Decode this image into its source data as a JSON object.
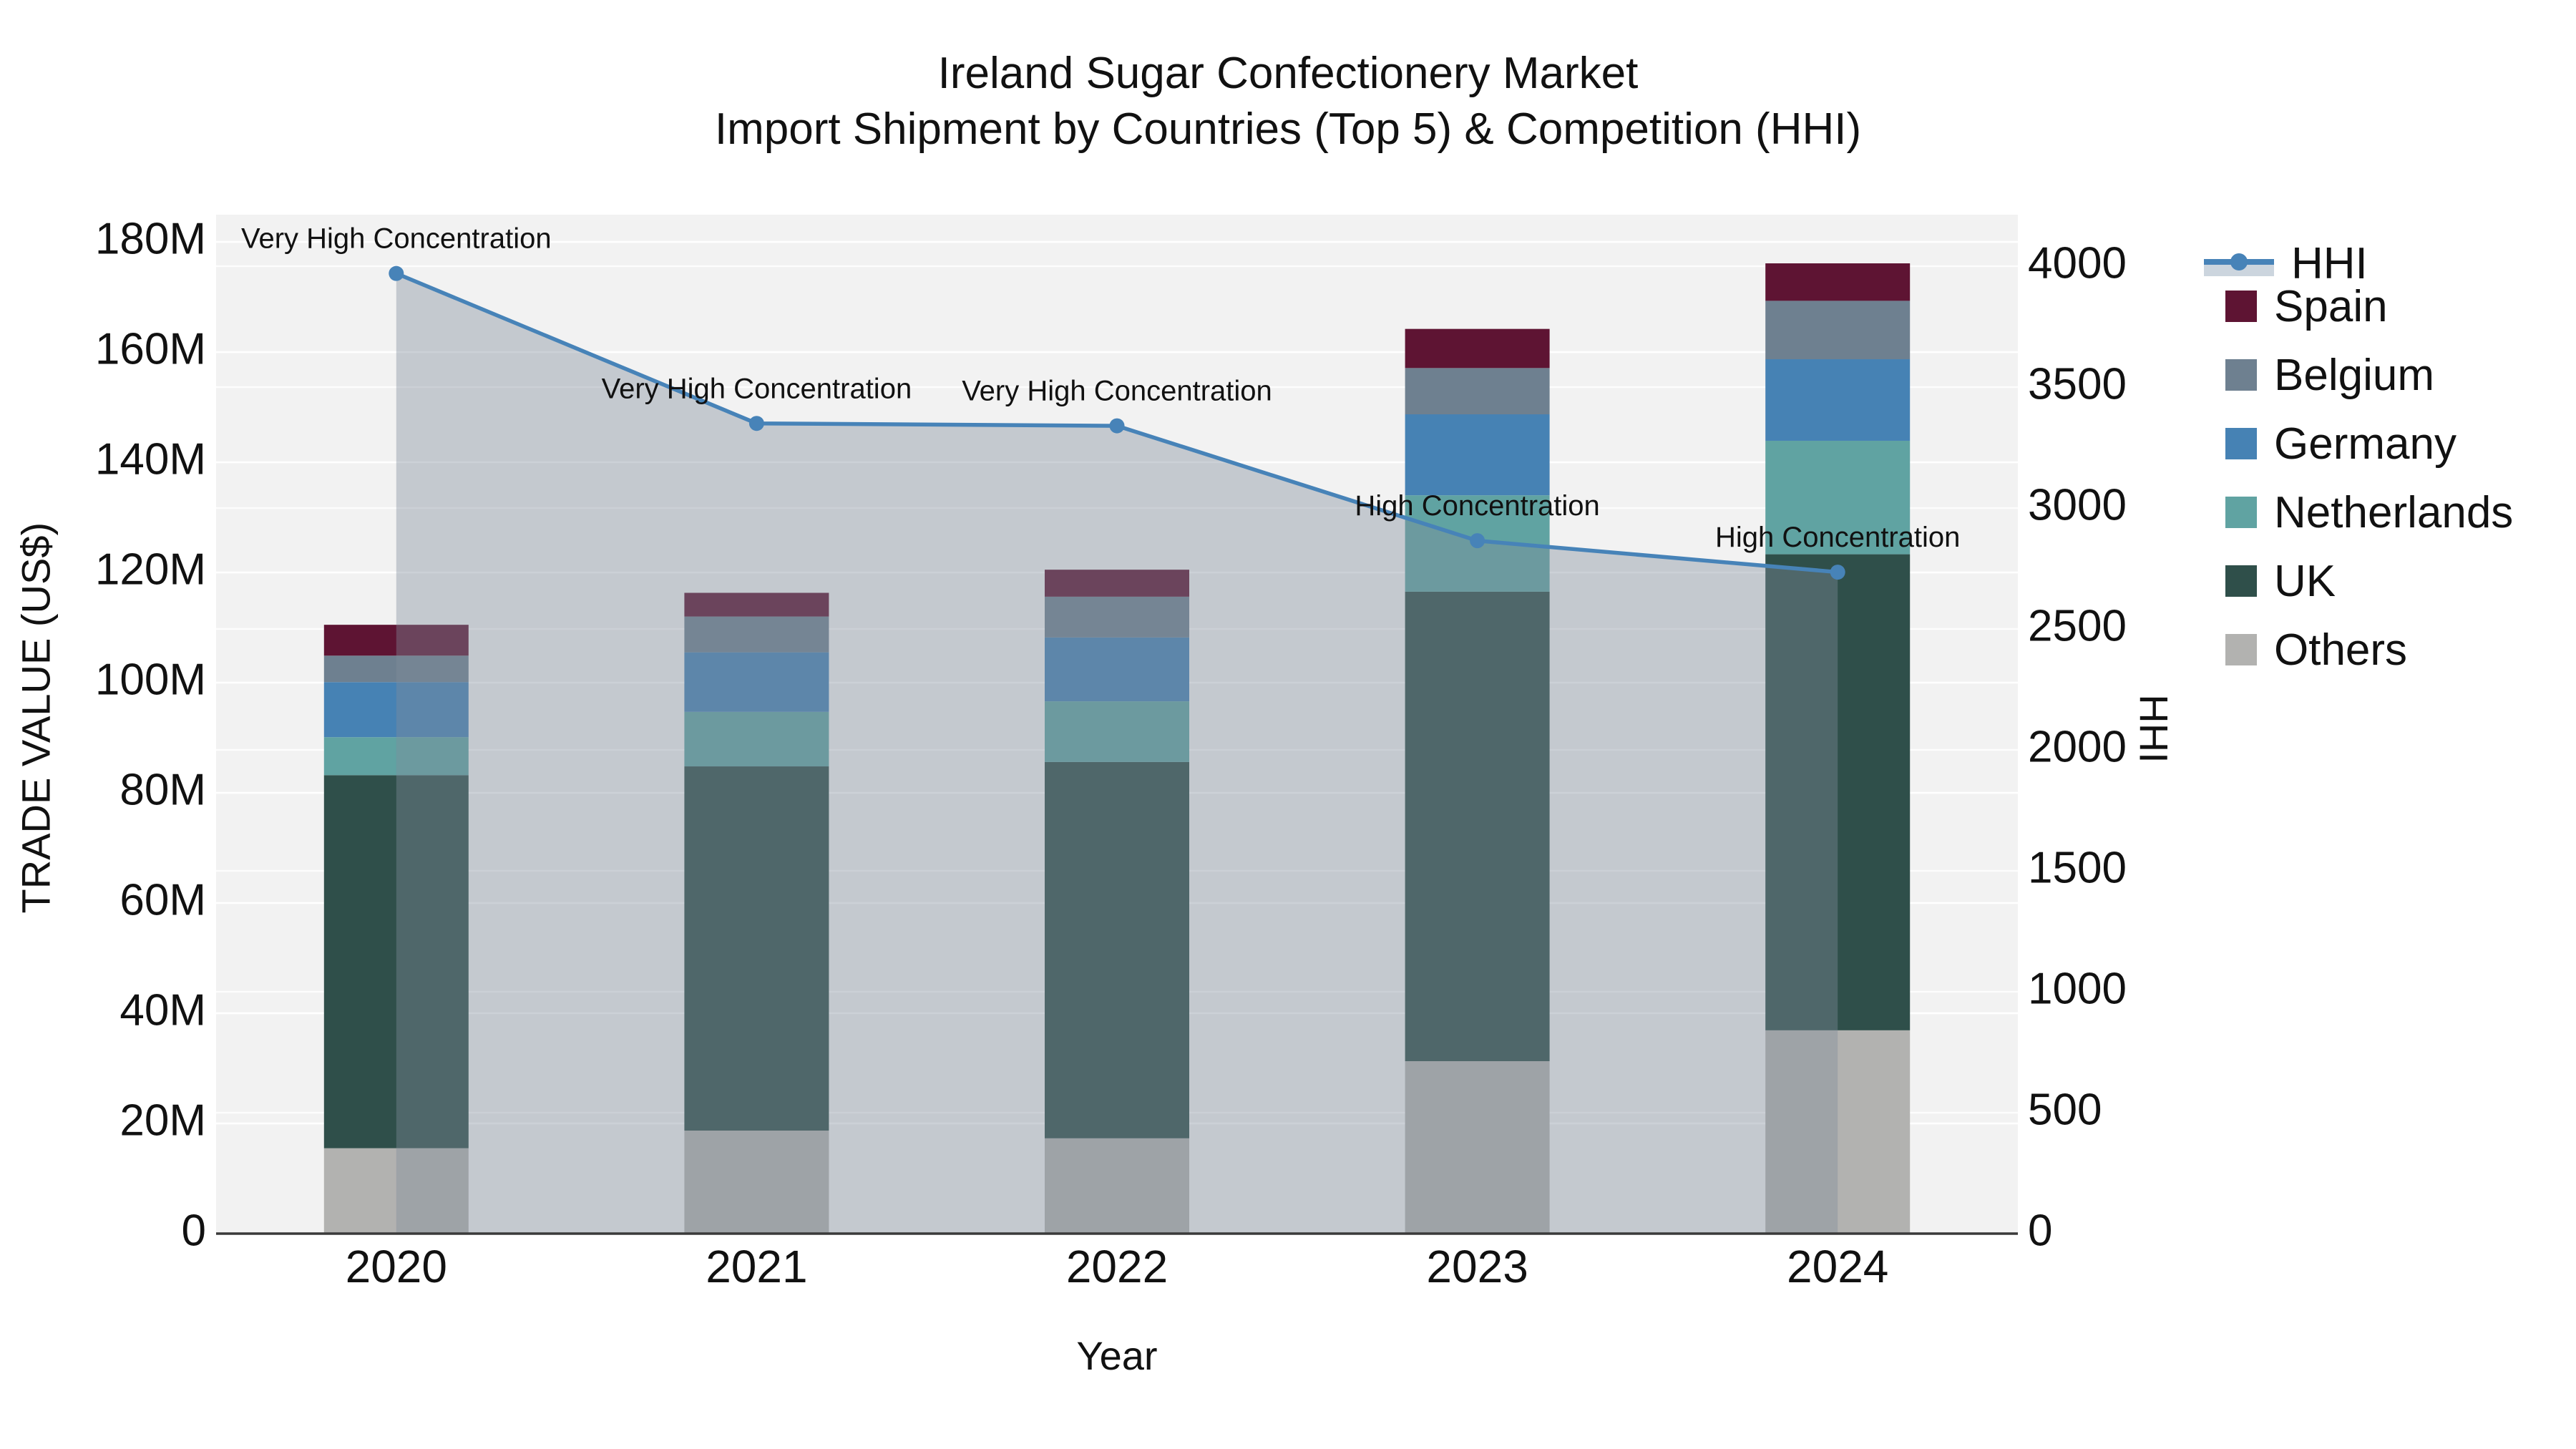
{
  "title": {
    "line1": "Ireland Sugar Confectionery Market",
    "line2": "Import Shipment by Countries (Top 5) & Competition (HHI)"
  },
  "chart_data": {
    "type": "bar",
    "subtype": "stacked bars with secondary-axis line (HHI) and shaded area",
    "categories": [
      "2020",
      "2021",
      "2022",
      "2023",
      "2024"
    ],
    "stack_order_bottom_to_top": [
      "Others",
      "UK",
      "Netherlands",
      "Germany",
      "Belgium",
      "Spain"
    ],
    "series": [
      {
        "name": "Others",
        "color": "#b2b2b0",
        "values": [
          15.5,
          18.7,
          17.3,
          31.3,
          36.9
        ]
      },
      {
        "name": "UK",
        "color": "#2f4f4a",
        "values": [
          67.7,
          66.1,
          68.3,
          85.2,
          86.4
        ]
      },
      {
        "name": "Netherlands",
        "color": "#60a3a2",
        "values": [
          6.9,
          9.9,
          11.0,
          17.5,
          20.6
        ]
      },
      {
        "name": "Germany",
        "color": "#4682b4",
        "values": [
          10.0,
          10.8,
          11.6,
          14.7,
          14.8
        ]
      },
      {
        "name": "Belgium",
        "color": "#6e8090",
        "values": [
          4.8,
          6.5,
          7.4,
          8.4,
          10.6
        ]
      },
      {
        "name": "Spain",
        "color": "#5e1433",
        "values": [
          5.6,
          4.3,
          4.9,
          7.1,
          6.8
        ]
      }
    ],
    "bar_totals": [
      110.5,
      116.3,
      120.5,
      164.2,
      176.1
    ],
    "values_unit": "million US$",
    "hhi": {
      "name": "HHI",
      "values": [
        3970,
        3350,
        3340,
        2865,
        2735
      ],
      "line_color": "#4783b8",
      "area_fill": "rgba(128,140,156,0.40)"
    },
    "annotations": [
      {
        "x": "2020",
        "label": "Very High Concentration"
      },
      {
        "x": "2021",
        "label": "Very High Concentration"
      },
      {
        "x": "2022",
        "label": "Very High Concentration"
      },
      {
        "x": "2023",
        "label": "High Concentration"
      },
      {
        "x": "2024",
        "label": "High Concentration"
      }
    ],
    "xlabel": "Year",
    "ylabel": "TRADE VALUE (US$)",
    "y2label": "HHI",
    "y_ticks": [
      "0",
      "20M",
      "40M",
      "60M",
      "80M",
      "100M",
      "120M",
      "140M",
      "160M",
      "180M"
    ],
    "y_tick_values": [
      0,
      20,
      40,
      60,
      80,
      100,
      120,
      140,
      160,
      180
    ],
    "y_max": 180,
    "y2_ticks": [
      "0",
      "500",
      "1000",
      "1500",
      "2000",
      "2500",
      "3000",
      "3500",
      "4000"
    ],
    "y2_tick_values": [
      0,
      500,
      1000,
      1500,
      2000,
      2500,
      3000,
      3500,
      4000
    ],
    "y2_max": 4000,
    "grid": "on",
    "plot_bg": "#f2f2f2",
    "legend_position": "right",
    "legend": [
      "HHI",
      "Spain",
      "Belgium",
      "Germany",
      "Netherlands",
      "UK",
      "Others"
    ]
  }
}
